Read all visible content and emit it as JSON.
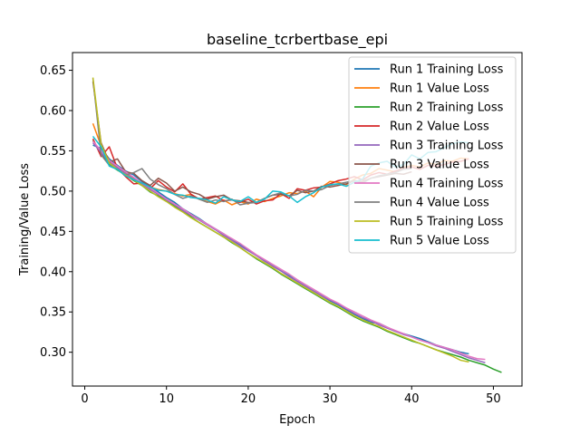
{
  "chart_data": {
    "type": "line",
    "title": "baseline_tcrbertbase_epi",
    "xlabel": "Epoch",
    "ylabel": "Training/Value Loss",
    "xlim": [
      -1.5,
      53.5
    ],
    "ylim": [
      0.258,
      0.672
    ],
    "xticks": [
      0,
      10,
      20,
      30,
      40,
      50
    ],
    "yticks": [
      0.3,
      0.35,
      0.4,
      0.45,
      0.5,
      0.55,
      0.6,
      0.65
    ],
    "ytick_labels": [
      "0.30",
      "0.35",
      "0.40",
      "0.45",
      "0.50",
      "0.55",
      "0.60",
      "0.65"
    ],
    "grid": false,
    "legend_position": "top-right",
    "series": [
      {
        "name": "Run 1 Training Loss",
        "color": "#1f77b4",
        "x": [
          1,
          2,
          3,
          4,
          5,
          6,
          7,
          8,
          9,
          10,
          11,
          12,
          13,
          14,
          15,
          16,
          17,
          18,
          19,
          20,
          21,
          22,
          23,
          24,
          25,
          26,
          27,
          28,
          29,
          30,
          31,
          32,
          33,
          34,
          35,
          36,
          37,
          38,
          39,
          40,
          41,
          42,
          43,
          44,
          45,
          46,
          47
        ],
        "y": [
          0.557,
          0.553,
          0.54,
          0.532,
          0.525,
          0.52,
          0.512,
          0.506,
          0.499,
          0.492,
          0.486,
          0.478,
          0.472,
          0.466,
          0.459,
          0.453,
          0.447,
          0.44,
          0.434,
          0.427,
          0.42,
          0.414,
          0.407,
          0.401,
          0.395,
          0.388,
          0.382,
          0.376,
          0.37,
          0.364,
          0.359,
          0.353,
          0.347,
          0.342,
          0.337,
          0.336,
          0.331,
          0.326,
          0.323,
          0.32,
          0.317,
          0.313,
          0.309,
          0.306,
          0.303,
          0.3,
          0.298
        ]
      },
      {
        "name": "Run 1 Value Loss",
        "color": "#ff7f0e",
        "x": [
          1,
          2,
          3,
          4,
          5,
          6,
          7,
          8,
          9,
          10,
          11,
          12,
          13,
          14,
          15,
          16,
          17,
          18,
          19,
          20,
          21,
          22,
          23,
          24,
          25,
          26,
          27,
          28,
          29,
          30,
          31,
          32,
          33,
          34,
          35,
          36,
          37,
          38,
          39,
          40,
          41,
          42,
          43,
          44,
          45,
          46,
          47
        ],
        "y": [
          0.584,
          0.556,
          0.538,
          0.53,
          0.522,
          0.516,
          0.51,
          0.505,
          0.502,
          0.5,
          0.497,
          0.494,
          0.496,
          0.49,
          0.487,
          0.484,
          0.489,
          0.483,
          0.487,
          0.484,
          0.49,
          0.487,
          0.491,
          0.494,
          0.498,
          0.497,
          0.5,
          0.493,
          0.505,
          0.512,
          0.511,
          0.508,
          0.515,
          0.52,
          0.522,
          0.528,
          0.526,
          0.524,
          0.529,
          0.532,
          0.53,
          0.535,
          0.533,
          0.538,
          0.537,
          0.541,
          0.54
        ]
      },
      {
        "name": "Run 2 Training Loss",
        "color": "#2ca02c",
        "x": [
          1,
          2,
          3,
          4,
          5,
          6,
          7,
          8,
          9,
          10,
          11,
          12,
          13,
          14,
          15,
          16,
          17,
          18,
          19,
          20,
          21,
          22,
          23,
          24,
          25,
          26,
          27,
          28,
          29,
          30,
          31,
          32,
          33,
          34,
          35,
          36,
          37,
          38,
          39,
          40,
          41,
          42,
          43,
          44,
          45,
          46,
          47,
          48,
          49,
          50,
          51
        ],
        "y": [
          0.563,
          0.546,
          0.533,
          0.526,
          0.52,
          0.513,
          0.507,
          0.499,
          0.494,
          0.488,
          0.481,
          0.475,
          0.468,
          0.461,
          0.455,
          0.449,
          0.443,
          0.436,
          0.43,
          0.423,
          0.416,
          0.41,
          0.404,
          0.397,
          0.391,
          0.385,
          0.379,
          0.373,
          0.367,
          0.361,
          0.356,
          0.35,
          0.344,
          0.339,
          0.335,
          0.331,
          0.326,
          0.322,
          0.318,
          0.314,
          0.311,
          0.307,
          0.303,
          0.3,
          0.297,
          0.294,
          0.29,
          0.287,
          0.284,
          0.279,
          0.275
        ]
      },
      {
        "name": "Run 2 Value Loss",
        "color": "#d62728",
        "x": [
          1,
          2,
          3,
          4,
          5,
          6,
          7,
          8,
          9,
          10,
          11,
          12,
          13,
          14,
          15,
          16,
          17,
          18,
          19,
          20,
          21,
          22,
          23,
          24,
          25,
          26,
          27,
          28,
          29,
          30,
          31,
          32,
          33,
          34,
          35,
          36,
          37,
          38,
          39,
          40,
          41,
          42,
          43,
          44,
          45,
          46,
          47
        ],
        "y": [
          0.565,
          0.543,
          0.555,
          0.528,
          0.518,
          0.509,
          0.51,
          0.503,
          0.513,
          0.505,
          0.499,
          0.509,
          0.496,
          0.49,
          0.492,
          0.494,
          0.488,
          0.489,
          0.486,
          0.49,
          0.484,
          0.488,
          0.489,
          0.497,
          0.491,
          0.503,
          0.501,
          0.504,
          0.505,
          0.509,
          0.513,
          0.515,
          0.518,
          0.514,
          0.52,
          0.523,
          0.521,
          0.525,
          0.528,
          0.53,
          0.527,
          0.532,
          0.531,
          0.533,
          0.536,
          0.537,
          0.54
        ]
      },
      {
        "name": "Run 3 Training Loss",
        "color": "#9467bd",
        "x": [
          1,
          2,
          3,
          4,
          5,
          6,
          7,
          8,
          9,
          10,
          11,
          12,
          13,
          14,
          15,
          16,
          17,
          18,
          19,
          20,
          21,
          22,
          23,
          24,
          25,
          26,
          27,
          28,
          29,
          30,
          31,
          32,
          33,
          34,
          35,
          36,
          37,
          38,
          39,
          40,
          41,
          42,
          43,
          44,
          45,
          46,
          47,
          48,
          49
        ],
        "y": [
          0.56,
          0.548,
          0.536,
          0.529,
          0.522,
          0.515,
          0.509,
          0.502,
          0.496,
          0.489,
          0.483,
          0.476,
          0.47,
          0.464,
          0.458,
          0.452,
          0.445,
          0.439,
          0.432,
          0.426,
          0.42,
          0.413,
          0.407,
          0.401,
          0.394,
          0.388,
          0.382,
          0.376,
          0.37,
          0.365,
          0.36,
          0.354,
          0.348,
          0.343,
          0.339,
          0.334,
          0.33,
          0.326,
          0.322,
          0.319,
          0.315,
          0.312,
          0.308,
          0.305,
          0.301,
          0.297,
          0.293,
          0.29,
          0.287
        ]
      },
      {
        "name": "Run 3 Value Loss",
        "color": "#8c564b",
        "x": [
          1,
          2,
          3,
          4,
          5,
          6,
          7,
          8,
          9,
          10,
          11,
          12,
          13,
          14,
          15,
          16,
          17,
          18,
          19,
          20,
          21,
          22,
          23,
          24,
          25,
          26,
          27,
          28,
          29,
          30,
          31,
          32,
          33,
          34,
          35,
          36,
          37,
          38,
          39,
          40
        ],
        "y": [
          0.636,
          0.56,
          0.536,
          0.54,
          0.524,
          0.522,
          0.513,
          0.507,
          0.516,
          0.51,
          0.5,
          0.505,
          0.499,
          0.496,
          0.49,
          0.493,
          0.495,
          0.489,
          0.488,
          0.486,
          0.486,
          0.491,
          0.495,
          0.496,
          0.494,
          0.501,
          0.498,
          0.5,
          0.506,
          0.505,
          0.507,
          0.509,
          0.513,
          0.512,
          0.516,
          0.518,
          0.52,
          0.522,
          0.521,
          0.524
        ]
      },
      {
        "name": "Run 4 Training Loss",
        "color": "#e377c2",
        "x": [
          1,
          2,
          3,
          4,
          5,
          6,
          7,
          8,
          9,
          10,
          11,
          12,
          13,
          14,
          15,
          16,
          17,
          18,
          19,
          20,
          21,
          22,
          23,
          24,
          25,
          26,
          27,
          28,
          29,
          30,
          31,
          32,
          33,
          34,
          35,
          36,
          37,
          38,
          39,
          40,
          41,
          42,
          43,
          44,
          45,
          46,
          47,
          48,
          49
        ],
        "y": [
          0.562,
          0.55,
          0.538,
          0.531,
          0.524,
          0.517,
          0.51,
          0.504,
          0.497,
          0.49,
          0.484,
          0.478,
          0.471,
          0.465,
          0.459,
          0.453,
          0.447,
          0.441,
          0.435,
          0.428,
          0.421,
          0.415,
          0.409,
          0.403,
          0.397,
          0.39,
          0.384,
          0.378,
          0.372,
          0.366,
          0.361,
          0.355,
          0.35,
          0.345,
          0.34,
          0.336,
          0.331,
          0.327,
          0.323,
          0.319,
          0.315,
          0.312,
          0.309,
          0.306,
          0.303,
          0.299,
          0.295,
          0.292,
          0.291
        ]
      },
      {
        "name": "Run 4 Value Loss",
        "color": "#7f7f7f",
        "x": [
          1,
          2,
          3,
          4,
          5,
          6,
          7,
          8,
          9,
          10,
          11,
          12,
          13,
          14,
          15,
          16,
          17,
          18,
          19,
          20,
          21,
          22,
          23,
          24,
          25,
          26,
          27,
          28,
          29,
          30,
          31,
          32,
          33,
          34,
          35,
          36,
          37,
          38,
          39,
          40
        ],
        "y": [
          0.64,
          0.545,
          0.532,
          0.527,
          0.52,
          0.523,
          0.528,
          0.515,
          0.508,
          0.503,
          0.496,
          0.491,
          0.494,
          0.49,
          0.486,
          0.489,
          0.487,
          0.49,
          0.483,
          0.485,
          0.486,
          0.491,
          0.495,
          0.498,
          0.494,
          0.496,
          0.501,
          0.5,
          0.502,
          0.507,
          0.509,
          0.511,
          0.513,
          0.51,
          0.516,
          0.519,
          0.521,
          0.523,
          0.527,
          0.528
        ]
      },
      {
        "name": "Run 5 Training Loss",
        "color": "#bcbd22",
        "x": [
          1,
          2,
          3,
          4,
          5,
          6,
          7,
          8,
          9,
          10,
          11,
          12,
          13,
          14,
          15,
          16,
          17,
          18,
          19,
          20,
          21,
          22,
          23,
          24,
          25,
          26,
          27,
          28,
          29,
          30,
          31,
          32,
          33,
          34,
          35,
          36,
          37,
          38,
          39,
          40,
          41,
          42,
          43,
          44,
          45,
          46,
          47
        ],
        "y": [
          0.641,
          0.558,
          0.535,
          0.527,
          0.52,
          0.514,
          0.507,
          0.5,
          0.493,
          0.487,
          0.48,
          0.474,
          0.467,
          0.461,
          0.455,
          0.449,
          0.443,
          0.437,
          0.43,
          0.423,
          0.417,
          0.411,
          0.405,
          0.398,
          0.392,
          0.386,
          0.38,
          0.374,
          0.368,
          0.362,
          0.357,
          0.351,
          0.345,
          0.34,
          0.336,
          0.332,
          0.327,
          0.323,
          0.319,
          0.315,
          0.311,
          0.307,
          0.303,
          0.299,
          0.295,
          0.29,
          0.288
        ]
      },
      {
        "name": "Run 5 Value Loss",
        "color": "#17becf",
        "x": [
          1,
          2,
          3,
          4,
          5,
          6,
          7,
          8,
          9,
          10,
          11,
          12,
          13,
          14,
          15,
          16,
          17,
          18,
          19,
          20,
          21,
          22,
          23,
          24,
          25,
          26,
          27,
          28,
          29,
          30,
          31,
          32,
          33,
          34,
          35,
          36,
          37,
          38,
          39,
          40,
          41,
          42,
          43,
          44,
          45,
          46,
          47
        ],
        "y": [
          0.568,
          0.555,
          0.531,
          0.527,
          0.519,
          0.514,
          0.51,
          0.505,
          0.501,
          0.5,
          0.496,
          0.495,
          0.492,
          0.491,
          0.489,
          0.485,
          0.493,
          0.489,
          0.487,
          0.493,
          0.486,
          0.49,
          0.5,
          0.499,
          0.494,
          0.486,
          0.493,
          0.498,
          0.505,
          0.508,
          0.509,
          0.506,
          0.511,
          0.515,
          0.531,
          0.535,
          0.537,
          0.53,
          0.533,
          0.545,
          0.54,
          0.548,
          0.549,
          0.554,
          0.559,
          0.561,
          0.56
        ]
      }
    ]
  }
}
